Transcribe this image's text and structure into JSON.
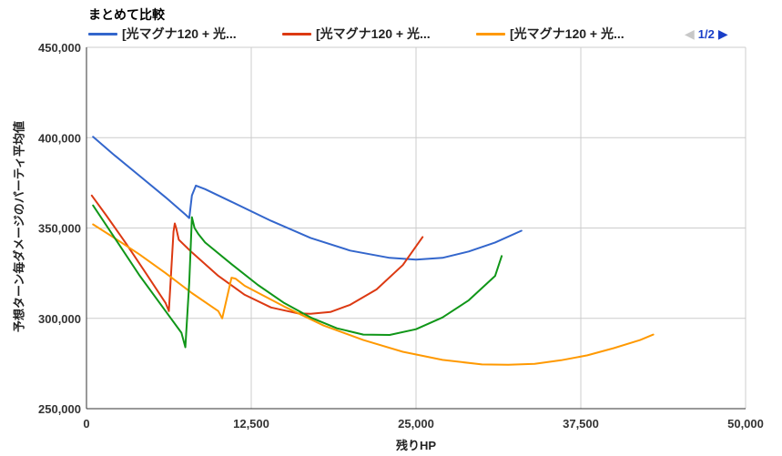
{
  "chart_data": {
    "type": "line",
    "title": "まとめて比較",
    "xlabel": "残りHP",
    "ylabel": "予想ターン毎ダメージのパーティ平均値",
    "xlim": [
      0,
      50000
    ],
    "ylim": [
      250000,
      450000
    ],
    "x_ticks": [
      0,
      12500,
      25000,
      37500,
      50000
    ],
    "x_tick_labels": [
      "0",
      "12,500",
      "25,000",
      "37,500",
      "50,000"
    ],
    "y_ticks": [
      250000,
      300000,
      350000,
      400000,
      450000
    ],
    "y_tick_labels": [
      "250,000",
      "300,000",
      "350,000",
      "400,000",
      "450,000"
    ],
    "grid": true,
    "legend": "top",
    "pager": {
      "prev": "◀",
      "text": "1/2",
      "next": "▶"
    },
    "series": [
      {
        "name": "[光マグナ120 + 光...",
        "color": "#3366cc",
        "x": [
          500,
          2000,
          4000,
          6000,
          7500,
          7800,
          8000,
          8300,
          9000,
          11000,
          14000,
          17000,
          20000,
          23000,
          25000,
          27000,
          29000,
          31000,
          33000
        ],
        "y": [
          400500,
          391000,
          379000,
          367000,
          357500,
          355500,
          368000,
          373500,
          371500,
          364500,
          354000,
          344500,
          337500,
          333500,
          332500,
          333500,
          337000,
          342000,
          348500
        ]
      },
      {
        "name": "[光マグナ120 + 光...",
        "color": "#dc3912",
        "x": [
          400,
          1500,
          3000,
          4500,
          6000,
          6250,
          6600,
          6700,
          6800,
          7000,
          8000,
          10000,
          12000,
          14000,
          16000,
          17000,
          18500,
          20000,
          22000,
          24000,
          25500
        ],
        "y": [
          368000,
          357000,
          341500,
          325000,
          308500,
          304000,
          348000,
          352500,
          350000,
          343500,
          336500,
          323500,
          313000,
          306000,
          302800,
          302500,
          303500,
          307500,
          316000,
          329500,
          345000
        ]
      },
      {
        "name": "[光マグナ120 + 光...",
        "color": "#ff9900",
        "x": [
          500,
          2000,
          4000,
          6000,
          8000,
          10000,
          10300,
          10800,
          11000,
          11300,
          12000,
          15000,
          18000,
          21000,
          24000,
          27000,
          30000,
          32000,
          34000,
          36000,
          38000,
          40000,
          42000,
          43000
        ],
        "y": [
          352000,
          345000,
          335500,
          325000,
          314000,
          304000,
          300000,
          316000,
          322500,
          322000,
          318000,
          306500,
          296000,
          288000,
          281500,
          277000,
          274500,
          274300,
          274800,
          276800,
          279500,
          283500,
          288000,
          291000
        ]
      },
      {
        "name": "",
        "color": "#109618",
        "x": [
          500,
          2000,
          4000,
          6000,
          7200,
          7500,
          7800,
          8000,
          8200,
          8500,
          9000,
          11000,
          13000,
          15000,
          17000,
          19000,
          21000,
          23000,
          25000,
          27000,
          29000,
          31000,
          31500
        ],
        "y": [
          362500,
          346000,
          324000,
          304000,
          292000,
          284000,
          320000,
          356000,
          350000,
          346500,
          342000,
          330000,
          318500,
          308500,
          300500,
          294500,
          291000,
          290800,
          294000,
          300500,
          310000,
          323500,
          334500
        ]
      }
    ]
  }
}
